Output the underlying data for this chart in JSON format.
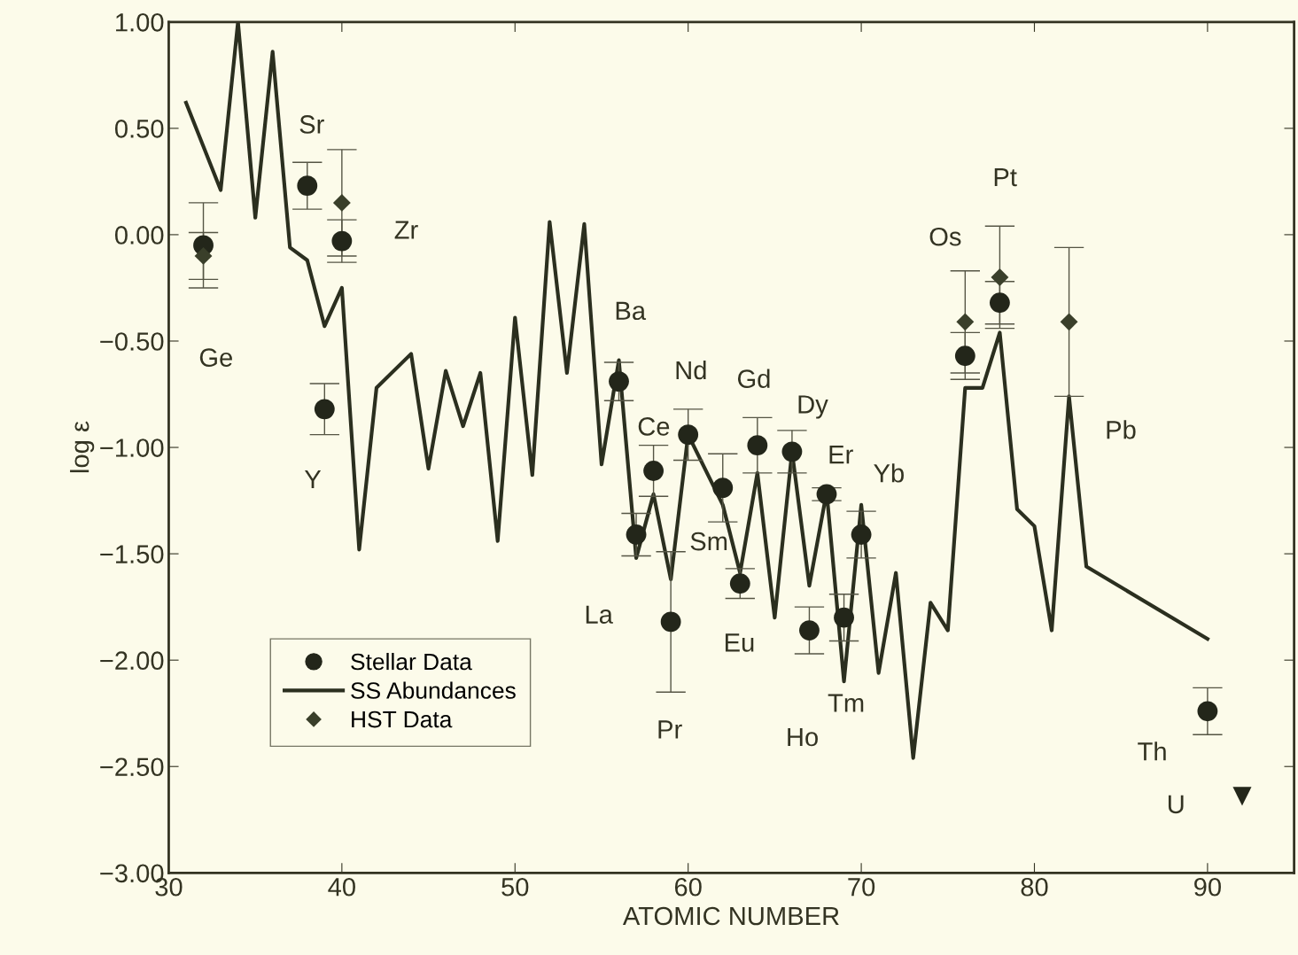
{
  "chart_data": {
    "type": "scatter",
    "xlabel": "ATOMIC NUMBER",
    "ylabel": "log ε",
    "xlim": [
      30,
      95
    ],
    "ylim": [
      -3.0,
      1.0
    ],
    "xticks": [
      30,
      40,
      50,
      60,
      70,
      80,
      90
    ],
    "yticks": [
      {
        "value": 1.0,
        "label": "1.00"
      },
      {
        "value": 0.5,
        "label": "0.50"
      },
      {
        "value": 0.0,
        "label": "0.00"
      },
      {
        "value": -0.5,
        "label": "−0.50"
      },
      {
        "value": -1.0,
        "label": "−1.00"
      },
      {
        "value": -1.5,
        "label": "−1.50"
      },
      {
        "value": -2.0,
        "label": "−2.00"
      },
      {
        "value": -2.5,
        "label": "−2.50"
      },
      {
        "value": -3.0,
        "label": "−3.00"
      }
    ],
    "grid": false,
    "legend": "bottom left",
    "series": [
      {
        "name": "Stellar Data",
        "color": "#23261a",
        "marker": "circle",
        "x": [
          32,
          38,
          39,
          40,
          56,
          57,
          58,
          59,
          60,
          62,
          63,
          64,
          66,
          67,
          68,
          69,
          70,
          76,
          78,
          90
        ],
        "values": [
          -0.05,
          0.23,
          -0.82,
          -0.03,
          -0.69,
          -1.41,
          -1.11,
          -1.82,
          -0.94,
          -1.19,
          -1.64,
          -0.99,
          -1.02,
          -1.86,
          -1.22,
          -1.8,
          -1.41,
          -0.57,
          -0.32,
          -2.24
        ],
        "errors": [
          0.2,
          0.11,
          0.12,
          0.1,
          0.09,
          0.1,
          0.12,
          0.33,
          0.12,
          0.16,
          0.07,
          0.13,
          0.1,
          0.11,
          0.03,
          0.11,
          0.11,
          0.11,
          0.1,
          0.11
        ]
      },
      {
        "name": "SS Abundances",
        "type": "line",
        "color": "#2b2f1f",
        "marker": "none",
        "x": [
          31,
          33,
          34,
          35,
          36,
          37,
          38,
          39,
          40,
          41,
          42,
          44,
          45,
          46,
          47,
          48,
          49,
          50,
          51,
          52,
          53,
          54,
          55,
          56,
          57,
          58,
          59,
          60,
          62,
          63,
          64,
          65,
          66,
          67,
          68,
          69,
          70,
          71,
          72,
          73,
          74,
          75,
          76,
          77,
          78,
          79,
          80,
          81,
          82,
          83,
          90
        ],
        "values": [
          0.62,
          0.21,
          1.0,
          0.08,
          0.86,
          -0.06,
          -0.12,
          -0.43,
          -0.25,
          -1.48,
          -0.72,
          -0.56,
          -1.1,
          -0.64,
          -0.9,
          -0.65,
          -1.44,
          -0.39,
          -1.13,
          0.06,
          -0.65,
          0.05,
          -1.08,
          -0.59,
          -1.52,
          -1.22,
          -1.62,
          -0.94,
          -1.27,
          -1.59,
          -1.12,
          -1.8,
          -1.02,
          -1.65,
          -1.21,
          -2.1,
          -1.27,
          -2.06,
          -1.59,
          -2.46,
          -1.73,
          -1.86,
          -0.72,
          -0.72,
          -0.46,
          -1.29,
          -1.37,
          -1.86,
          -0.76,
          -1.56,
          -1.9
        ]
      },
      {
        "name": "HST Data",
        "color": "#3a3f2a",
        "marker": "diamond",
        "x": [
          32,
          40,
          76,
          78,
          82
        ],
        "values": [
          -0.1,
          0.15,
          -0.41,
          -0.2,
          -0.41
        ],
        "errors": [
          0.11,
          0.25,
          0.24,
          0.24,
          0.35
        ]
      },
      {
        "color": "#23261a",
        "marker": "triangle",
        "x": [
          92
        ],
        "values": [
          -2.64
        ]
      }
    ],
    "annotations": [
      "Ge",
      "Sr",
      "Zr",
      "Y",
      "Ba",
      "Nd",
      "Gd",
      "Ce",
      "Dy",
      "Er",
      "Yb",
      "Sm",
      "La",
      "Eu",
      "Pr",
      "Ho",
      "Tm",
      "Os",
      "Pt",
      "Pb",
      "Th",
      "U"
    ]
  }
}
